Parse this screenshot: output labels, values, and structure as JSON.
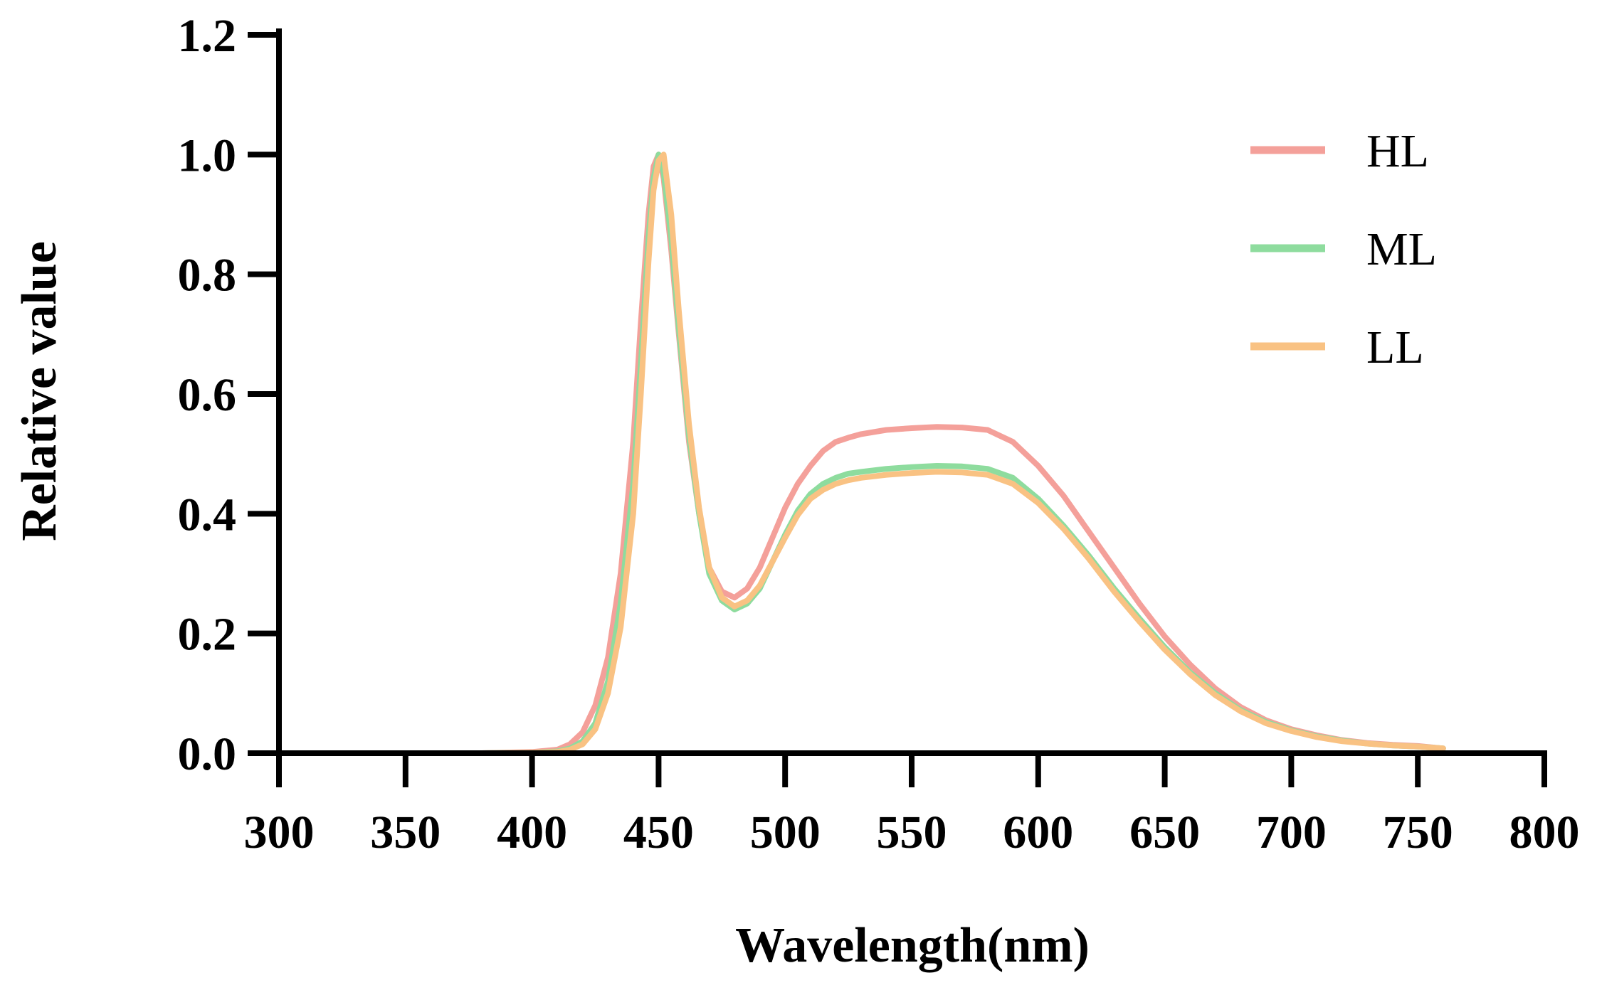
{
  "chart_data": {
    "type": "line",
    "title": "",
    "xlabel": "Wavelength(nm)",
    "ylabel": "Relative value",
    "xlim": [
      300,
      800
    ],
    "ylim": [
      0.0,
      1.2
    ],
    "xticks": [
      300,
      350,
      400,
      450,
      500,
      550,
      600,
      650,
      700,
      750,
      800
    ],
    "yticks": [
      0.0,
      0.2,
      0.4,
      0.6,
      0.8,
      1.0,
      1.2
    ],
    "xtick_labels": [
      "300",
      "350",
      "400",
      "450",
      "500",
      "550",
      "600",
      "650",
      "700",
      "750",
      "800"
    ],
    "ytick_labels": [
      "0.0",
      "0.2",
      "0.4",
      "0.6",
      "0.8",
      "1.0",
      "1.2"
    ],
    "grid": false,
    "legend_position": "top-right",
    "series": [
      {
        "name": "HL",
        "color": "#F4A09A",
        "x": [
          360,
          380,
          400,
          410,
          415,
          420,
          425,
          430,
          435,
          440,
          443,
          446,
          448,
          450,
          452,
          455,
          458,
          462,
          466,
          470,
          475,
          480,
          485,
          490,
          495,
          500,
          505,
          510,
          515,
          520,
          525,
          530,
          540,
          550,
          560,
          570,
          580,
          590,
          600,
          610,
          620,
          630,
          640,
          650,
          660,
          670,
          680,
          690,
          700,
          710,
          720,
          730,
          740,
          750,
          760
        ],
        "y": [
          0.0,
          0.0,
          0.002,
          0.006,
          0.015,
          0.035,
          0.08,
          0.16,
          0.3,
          0.52,
          0.72,
          0.9,
          0.98,
          1.0,
          0.96,
          0.84,
          0.7,
          0.52,
          0.4,
          0.31,
          0.27,
          0.26,
          0.275,
          0.31,
          0.36,
          0.41,
          0.45,
          0.48,
          0.505,
          0.52,
          0.527,
          0.533,
          0.54,
          0.543,
          0.545,
          0.544,
          0.54,
          0.52,
          0.48,
          0.43,
          0.37,
          0.31,
          0.25,
          0.195,
          0.148,
          0.108,
          0.077,
          0.055,
          0.04,
          0.03,
          0.022,
          0.017,
          0.014,
          0.012,
          0.008
        ]
      },
      {
        "name": "ML",
        "color": "#8EDC9E",
        "x": [
          360,
          380,
          400,
          410,
          415,
          420,
          425,
          430,
          435,
          440,
          443,
          446,
          448,
          450,
          452,
          455,
          458,
          462,
          466,
          470,
          475,
          480,
          485,
          490,
          495,
          500,
          505,
          510,
          515,
          520,
          525,
          530,
          540,
          550,
          560,
          570,
          580,
          590,
          600,
          610,
          620,
          630,
          640,
          650,
          660,
          670,
          680,
          690,
          700,
          710,
          720,
          730,
          740,
          750,
          760
        ],
        "y": [
          0.0,
          0.0,
          0.001,
          0.003,
          0.008,
          0.02,
          0.05,
          0.12,
          0.25,
          0.45,
          0.65,
          0.86,
          0.96,
          1.0,
          0.97,
          0.86,
          0.71,
          0.53,
          0.4,
          0.3,
          0.255,
          0.24,
          0.25,
          0.275,
          0.32,
          0.365,
          0.405,
          0.433,
          0.45,
          0.46,
          0.467,
          0.47,
          0.475,
          0.478,
          0.48,
          0.479,
          0.475,
          0.46,
          0.425,
          0.38,
          0.33,
          0.275,
          0.225,
          0.177,
          0.135,
          0.1,
          0.072,
          0.052,
          0.038,
          0.028,
          0.021,
          0.016,
          0.013,
          0.011,
          0.008
        ]
      },
      {
        "name": "LL",
        "color": "#F9C283",
        "x": [
          360,
          380,
          400,
          410,
          415,
          420,
          425,
          430,
          435,
          440,
          443,
          446,
          448,
          450,
          452,
          455,
          458,
          462,
          466,
          470,
          475,
          480,
          485,
          490,
          495,
          500,
          505,
          510,
          515,
          520,
          525,
          530,
          540,
          550,
          560,
          570,
          580,
          590,
          600,
          610,
          620,
          630,
          640,
          650,
          660,
          670,
          680,
          690,
          700,
          710,
          720,
          730,
          740,
          750,
          760
        ],
        "y": [
          0.0,
          0.0,
          0.001,
          0.002,
          0.006,
          0.015,
          0.04,
          0.1,
          0.21,
          0.4,
          0.6,
          0.82,
          0.94,
          0.99,
          1.0,
          0.9,
          0.74,
          0.55,
          0.41,
          0.31,
          0.26,
          0.245,
          0.255,
          0.28,
          0.32,
          0.36,
          0.398,
          0.425,
          0.44,
          0.45,
          0.456,
          0.46,
          0.465,
          0.468,
          0.47,
          0.469,
          0.465,
          0.45,
          0.418,
          0.375,
          0.325,
          0.27,
          0.22,
          0.173,
          0.132,
          0.097,
          0.07,
          0.05,
          0.037,
          0.027,
          0.02,
          0.016,
          0.013,
          0.011,
          0.008
        ]
      }
    ]
  }
}
